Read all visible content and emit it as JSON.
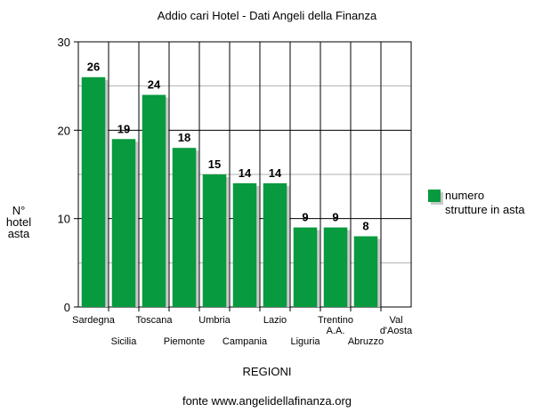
{
  "chart_data": {
    "type": "bar",
    "title": "Addio cari Hotel - Dati Angeli della Finanza",
    "ylabel": "N° hotel asta",
    "xlabel": "REGIONI",
    "ylim": [
      0,
      30
    ],
    "yticks": [
      "0",
      "10",
      "20",
      "30"
    ],
    "categories": [
      "Sardegna",
      "Sicilia",
      "Toscana",
      "Piemonte",
      "Umbria",
      "Campania",
      "Lazio",
      "Liguria",
      "Trentino A.A.",
      "Abruzzo",
      "Val d'Aosta"
    ],
    "series": [
      {
        "name": "numero strutture in asta",
        "values": [
          26,
          19,
          24,
          18,
          15,
          14,
          14,
          9,
          9,
          8,
          null
        ]
      }
    ],
    "data_labels": [
      "26",
      "19",
      "24",
      "18",
      "15",
      "14",
      "14",
      "9",
      "9",
      "8",
      ""
    ],
    "grid": true,
    "legend_position": "right",
    "bar_color": "#079a3e"
  },
  "footer": {
    "source": "fonte www.angelidellafinanza.org"
  },
  "ylabel_lines": [
    "N°",
    "hotel",
    "asta"
  ]
}
